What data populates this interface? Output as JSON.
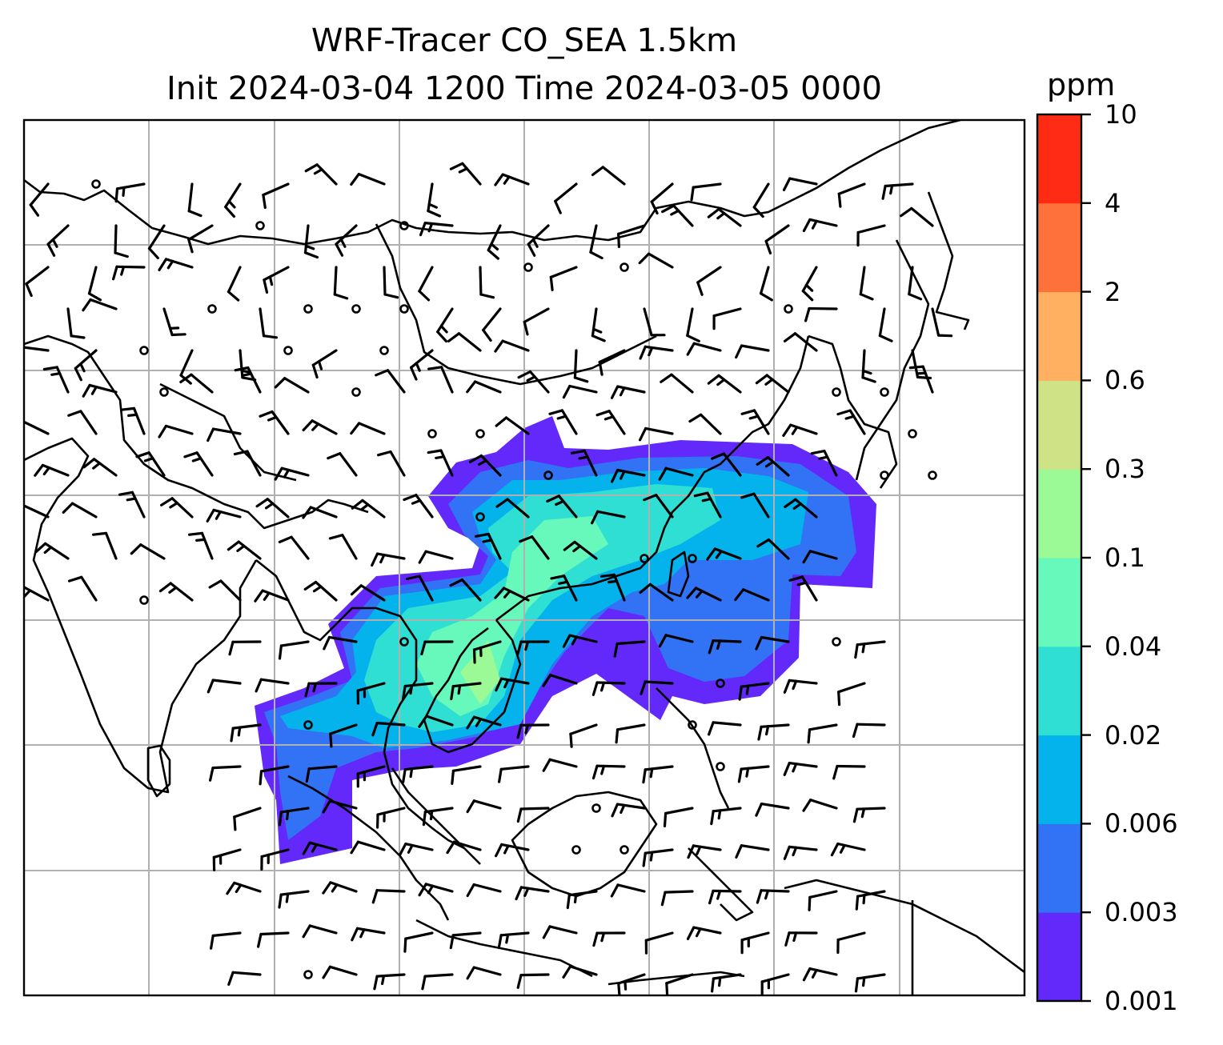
{
  "title": {
    "line1": "WRF-Tracer CO_SEA 1.5km",
    "line2": "Init 2024-03-04 1200 Time 2024-03-05 0000"
  },
  "colorbar": {
    "unit": "ppm",
    "levels": [
      "0.001",
      "0.003",
      "0.006",
      "0.02",
      "0.04",
      "0.1",
      "0.3",
      "0.6",
      "2",
      "4",
      "10"
    ],
    "colors": [
      "#6329fb",
      "#3273f5",
      "#04b3ec",
      "#2fdfd3",
      "#66f9bb",
      "#9bfa96",
      "#cfe286",
      "#ffb061",
      "#ff713a",
      "#ff2b15"
    ]
  },
  "map": {
    "grid_lines": true,
    "background": "#ffffff",
    "coastline_color": "#000000",
    "grid_color": "#b0b0b0",
    "symbols": [
      "wind-barb",
      "calm-circle"
    ]
  }
}
